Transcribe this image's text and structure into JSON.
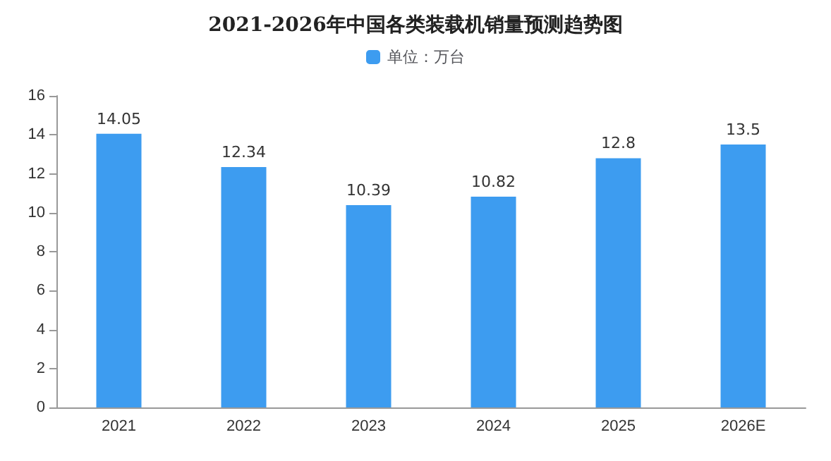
{
  "chart_data": {
    "type": "bar",
    "title": "2021-2026年中国各类装载机销量预测趋势图",
    "categories": [
      "2021",
      "2022",
      "2023",
      "2024",
      "2025",
      "2026E"
    ],
    "series": [
      {
        "name": "单位：万台",
        "color": "#3d9cf0",
        "values": [
          14.05,
          12.34,
          10.39,
          10.82,
          12.8,
          13.5
        ]
      }
    ],
    "ylim": [
      0,
      16
    ],
    "yticks": [
      0,
      2,
      4,
      6,
      8,
      10,
      12,
      14,
      16
    ],
    "grid": false,
    "legend": "top",
    "data_labels": true
  }
}
